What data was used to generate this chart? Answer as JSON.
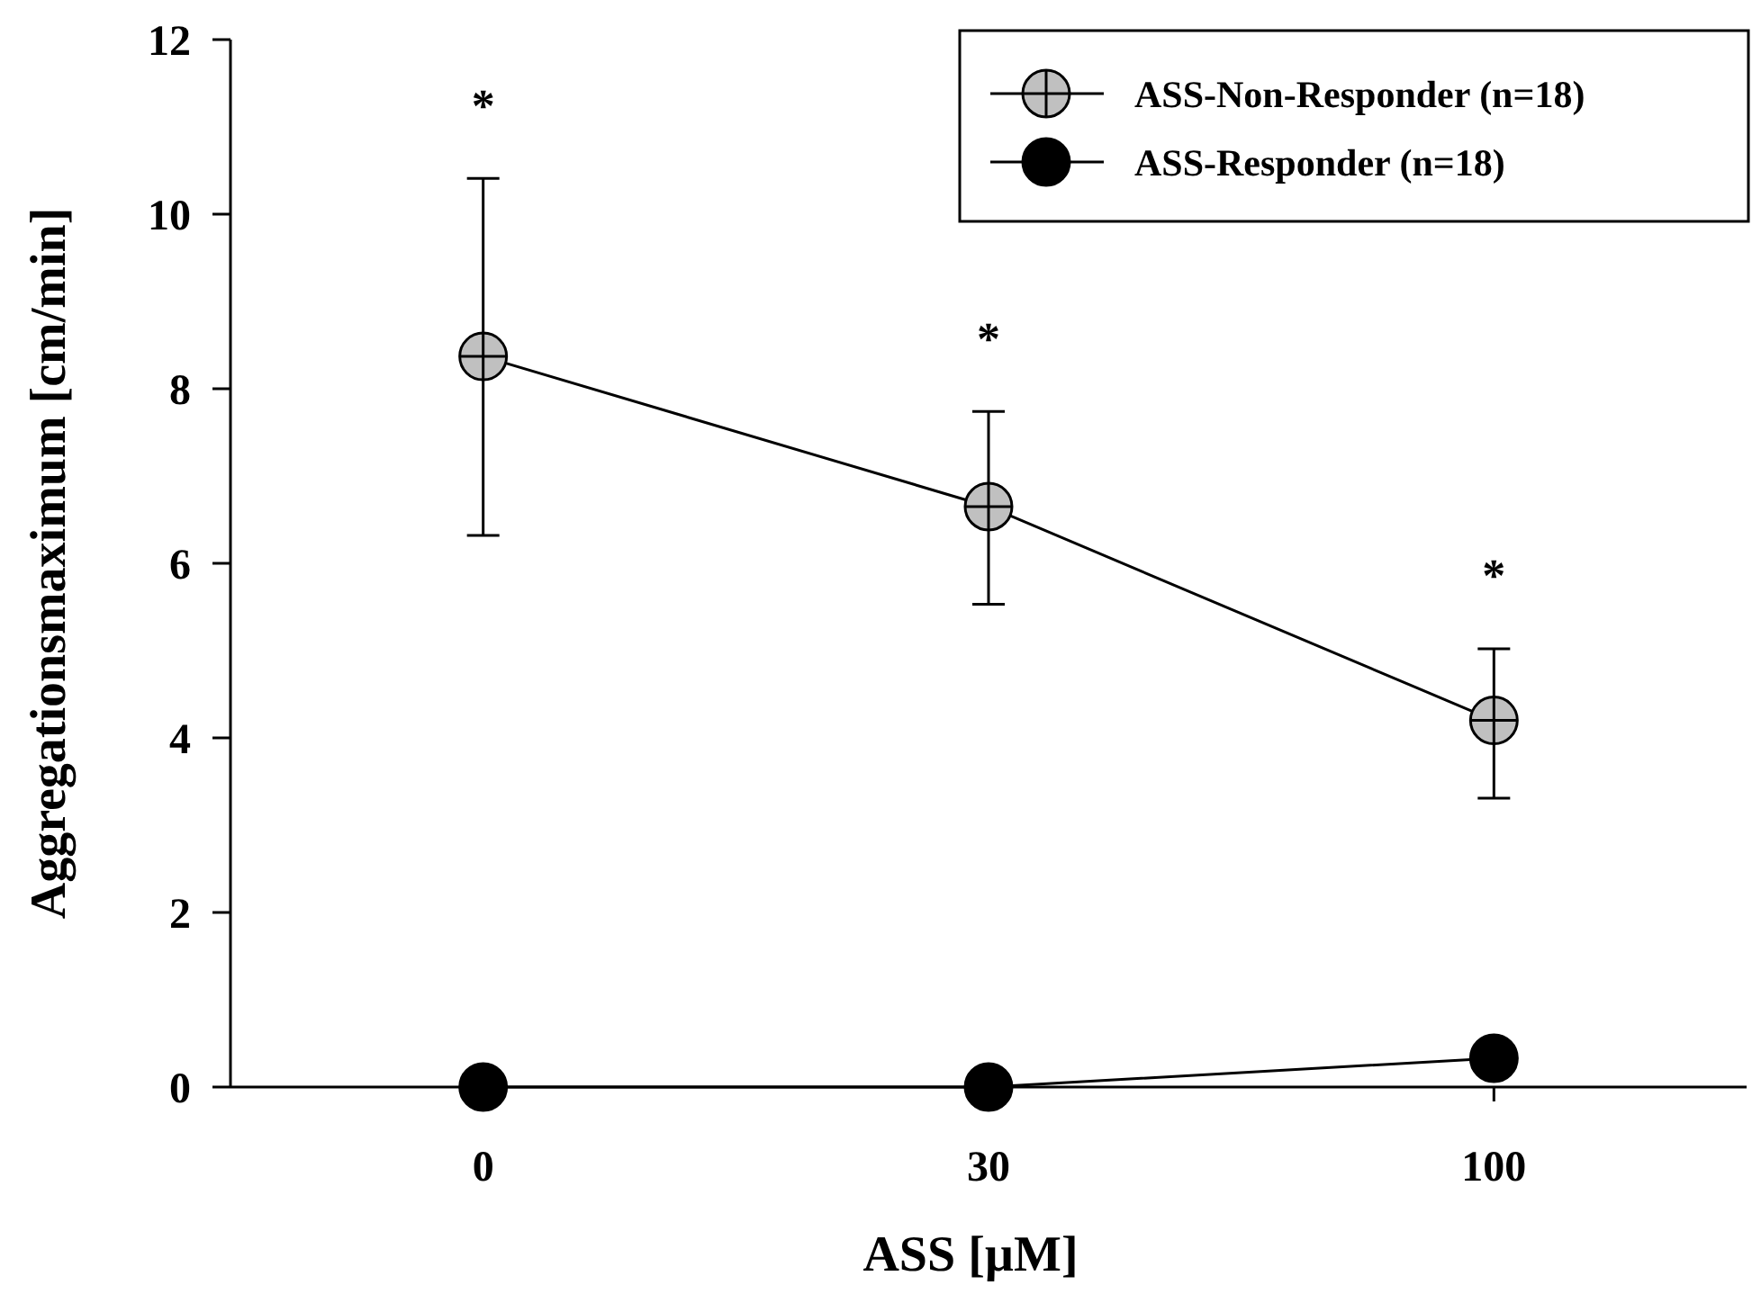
{
  "chart_data": {
    "type": "line",
    "xlabel": "ASS [µM]",
    "ylabel": "Aggregationsmaximum [cm/min]",
    "categories": [
      "0",
      "30",
      "100"
    ],
    "series": [
      {
        "name": "ASS-Non-Responder (n=18)",
        "color": "#c0c0c0",
        "values": [
          8.37,
          6.65,
          4.2
        ],
        "errors": [
          [
            6.32,
            10.41
          ],
          [
            5.53,
            7.74
          ],
          [
            3.31,
            5.02
          ]
        ]
      },
      {
        "name": "ASS-Responder (n=18)",
        "color": "#000000",
        "values": [
          0,
          0,
          0.33
        ]
      }
    ],
    "ylim": [
      0,
      12
    ],
    "yticks": [
      0,
      2,
      4,
      6,
      8,
      10,
      12
    ],
    "marker": "circle",
    "line_style": "solid",
    "legend": "top right",
    "grid": false,
    "annotations": [
      "*",
      "*",
      "*"
    ]
  }
}
